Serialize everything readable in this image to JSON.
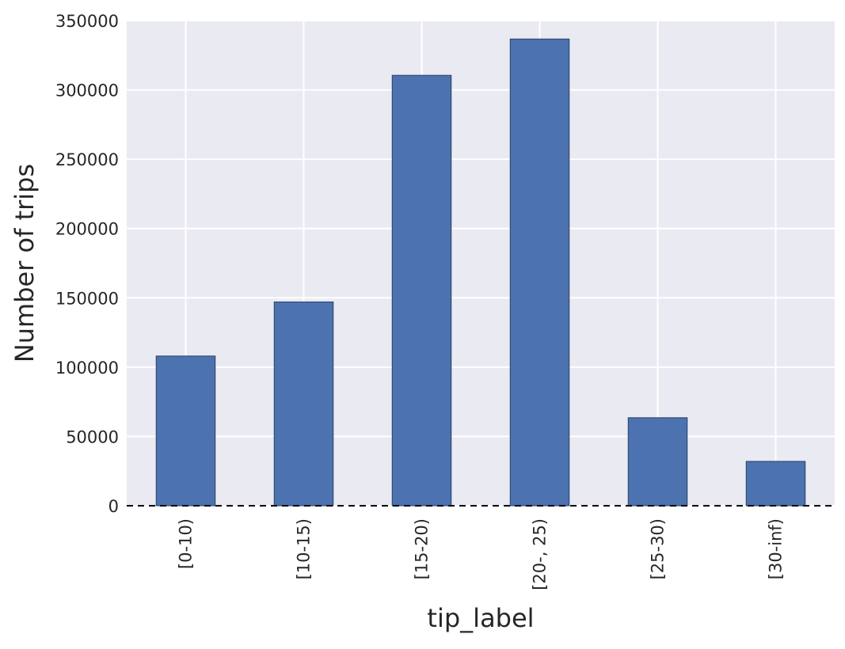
{
  "chart_data": {
    "type": "bar",
    "categories": [
      "[0-10)",
      "[10-15)",
      "[15-20)",
      "[20-, 25)",
      "[25-30)",
      "[30-inf)"
    ],
    "values": [
      108000,
      147000,
      310500,
      336700,
      63500,
      32000
    ],
    "xlabel": "tip_label",
    "ylabel": "Number of trips",
    "ylim": [
      0,
      350000
    ],
    "yticks": [
      0,
      50000,
      100000,
      150000,
      200000,
      250000,
      300000,
      350000
    ],
    "grid": true,
    "legend": "none",
    "baseline": "dashed",
    "colors": {
      "bar": "#4c72b0",
      "bar_edge": "#2a3f66",
      "plot_background": "#eaeaf2",
      "grid": "#ffffff",
      "baseline": "#000000"
    }
  }
}
